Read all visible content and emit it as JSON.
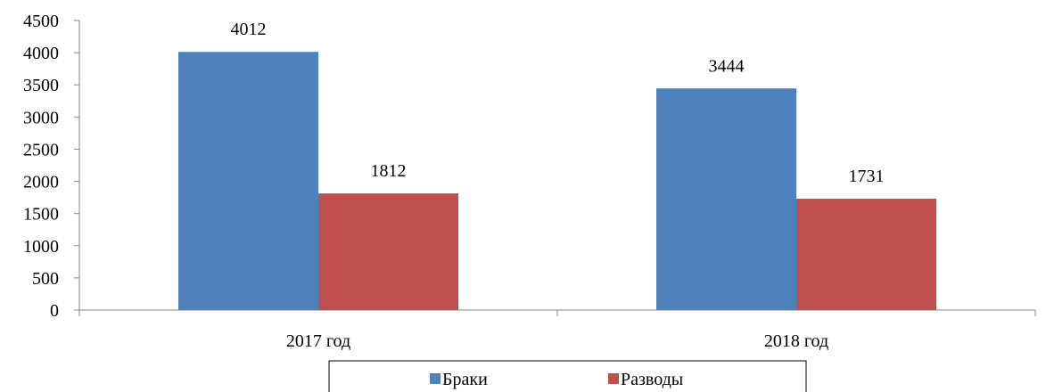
{
  "chart_data": {
    "type": "bar",
    "categories": [
      "2017 год",
      "2018 год"
    ],
    "series": [
      {
        "name": "Браки",
        "values": [
          4012,
          3444
        ],
        "color": "#4f81bd"
      },
      {
        "name": "Разводы",
        "values": [
          1812,
          1731
        ],
        "color": "#c0504d"
      }
    ],
    "ylim": [
      0,
      4500
    ],
    "yticks": [
      0,
      500,
      1000,
      1500,
      2000,
      2500,
      3000,
      3500,
      4000,
      4500
    ],
    "grid": false,
    "legend_position": "bottom",
    "data_labels": true
  }
}
